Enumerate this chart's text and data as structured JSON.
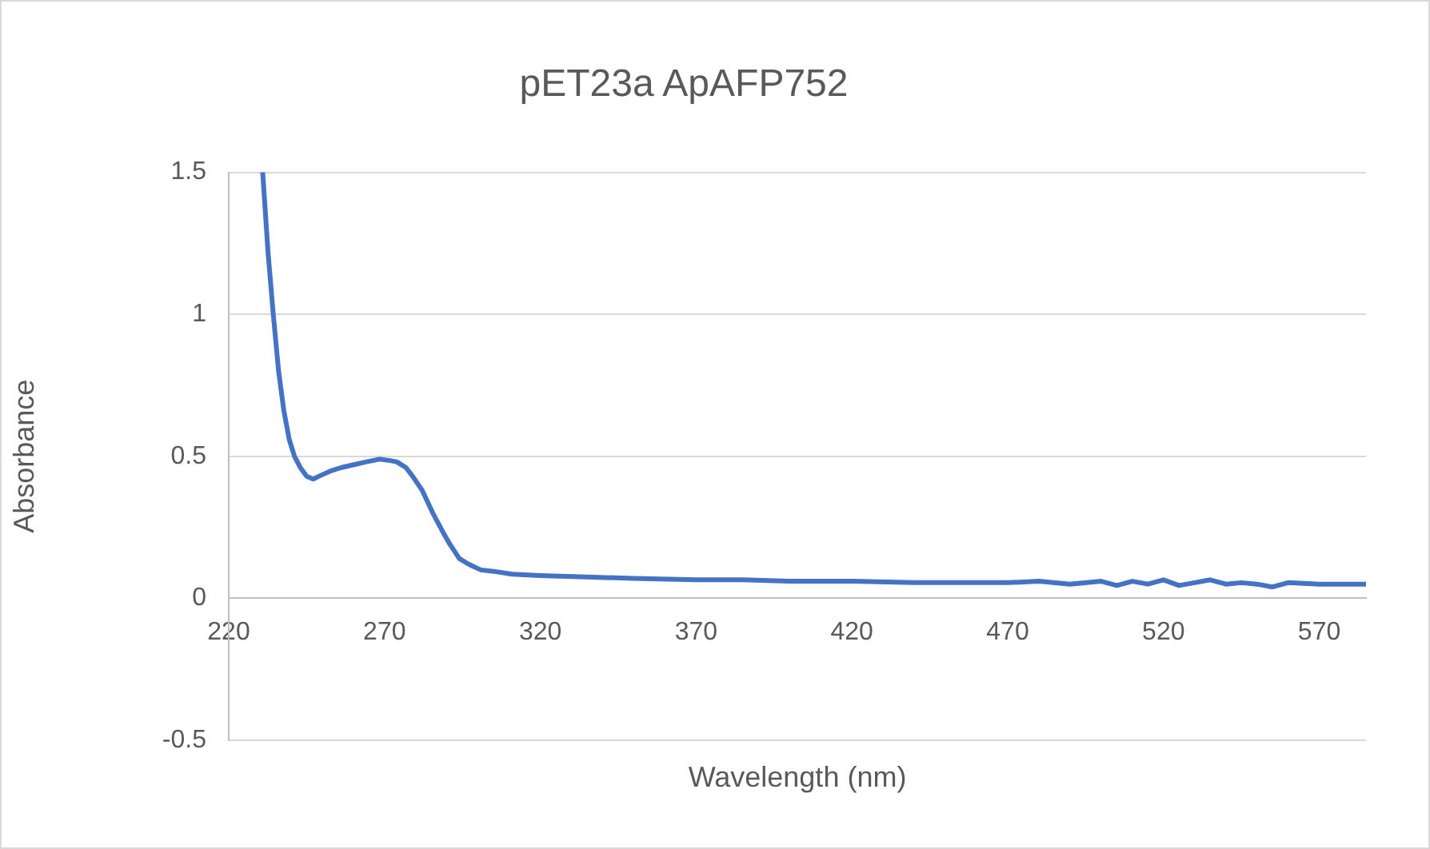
{
  "chart_data": {
    "type": "line",
    "title": "pET23a ApAFP752",
    "xlabel": "Wavelength (nm)",
    "ylabel": "Absorbance",
    "xlim": [
      220,
      585
    ],
    "xticks": [
      220,
      270,
      320,
      370,
      420,
      470,
      520,
      570
    ],
    "ylim": [
      -0.5,
      1.5
    ],
    "yticks": [
      -0.5,
      0,
      0.5,
      1,
      1.5
    ],
    "grid": "y",
    "legend": false,
    "marker": "none",
    "line_style": "solid",
    "series": [
      {
        "color": "#4472c4",
        "x": [
          230.9,
          232.6,
          234.3,
          236,
          237.7,
          239.4,
          241.1,
          243,
          245,
          247.1,
          249,
          251,
          253.1,
          256,
          259.9,
          264,
          268.4,
          271.8,
          274,
          276.9,
          279,
          282.1,
          285.5,
          288.9,
          291,
          294,
          297,
          300.9,
          305,
          311,
          320,
          335,
          350,
          370,
          385,
          400,
          420,
          440,
          460,
          470,
          480,
          490,
          500,
          505,
          510,
          515,
          520,
          525,
          530,
          535,
          540,
          545,
          550,
          555,
          560,
          570,
          585
        ],
        "values": [
          1.5,
          1.22,
          1.0,
          0.8,
          0.66,
          0.56,
          0.5,
          0.46,
          0.43,
          0.42,
          0.43,
          0.44,
          0.45,
          0.46,
          0.47,
          0.48,
          0.49,
          0.485,
          0.48,
          0.46,
          0.43,
          0.38,
          0.3,
          0.23,
          0.19,
          0.14,
          0.12,
          0.1,
          0.095,
          0.085,
          0.08,
          0.075,
          0.07,
          0.065,
          0.065,
          0.06,
          0.06,
          0.055,
          0.055,
          0.055,
          0.06,
          0.05,
          0.06,
          0.045,
          0.06,
          0.05,
          0.065,
          0.045,
          0.055,
          0.065,
          0.05,
          0.055,
          0.05,
          0.04,
          0.055,
          0.05,
          0.05
        ]
      }
    ]
  }
}
